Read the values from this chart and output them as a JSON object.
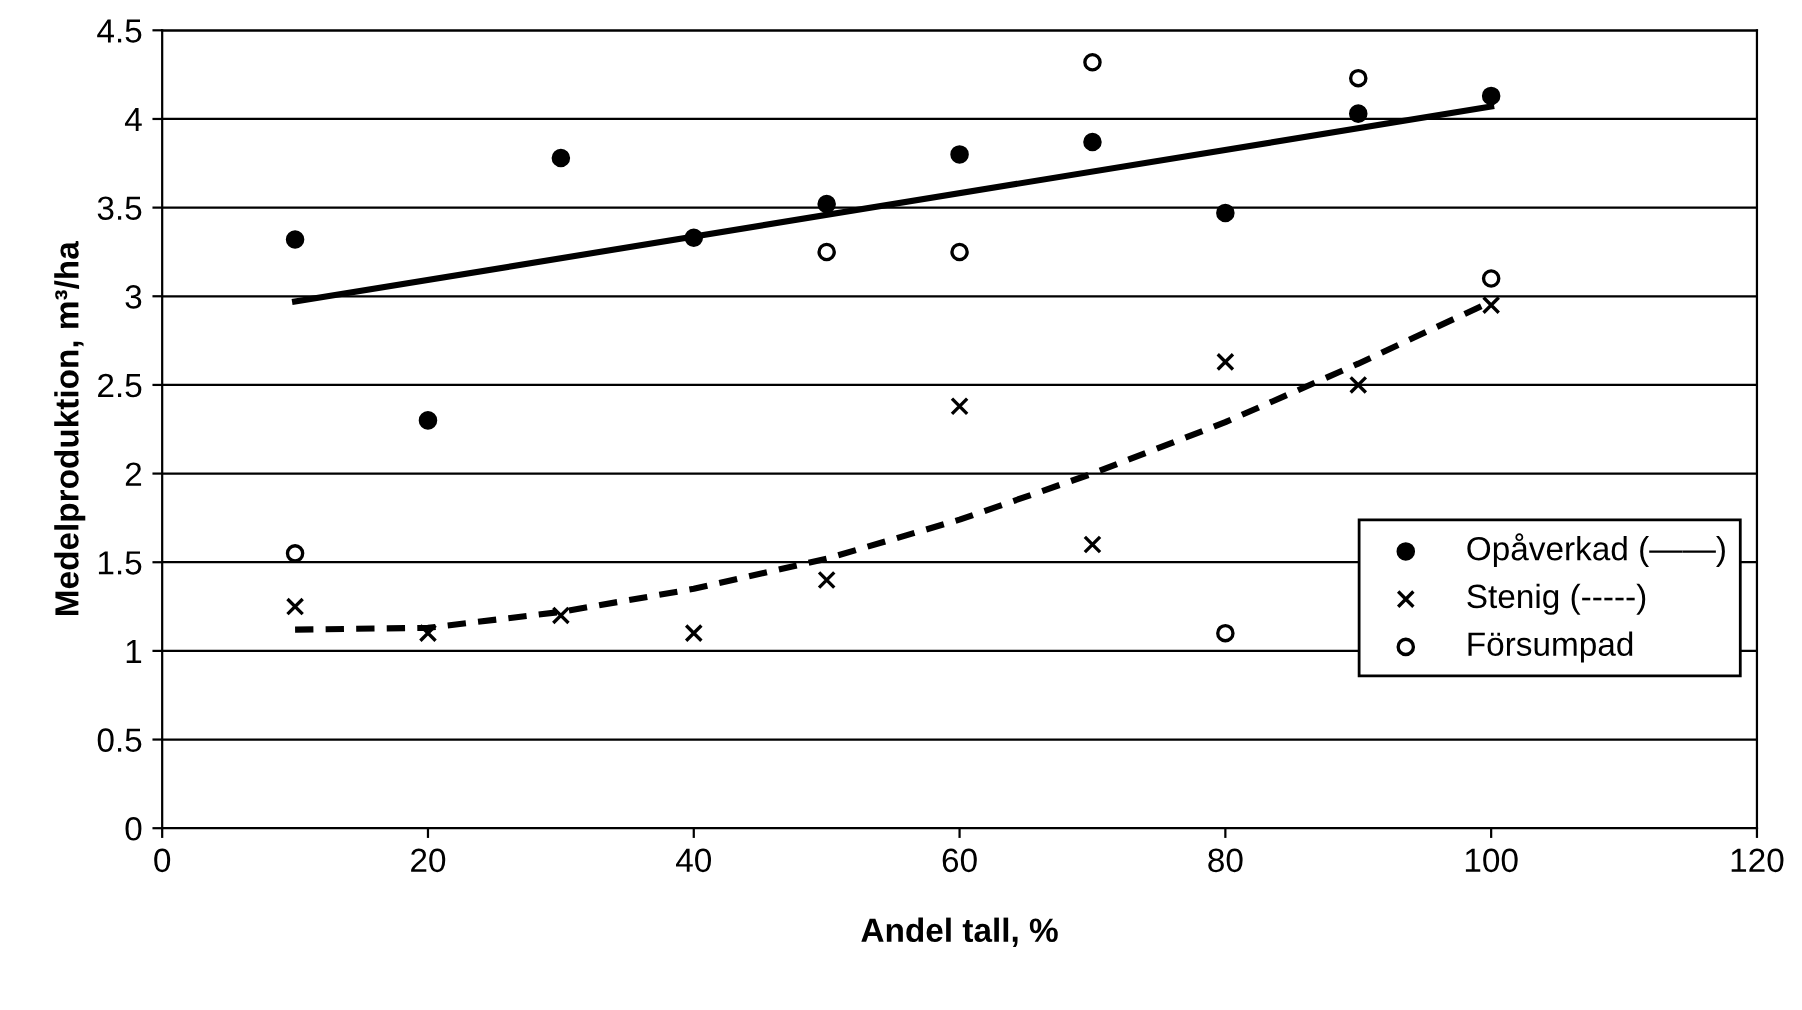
{
  "chart_data": {
    "type": "scatter",
    "xlabel": "Andel tall, %",
    "ylabel": "Medelproduktion, m³/ha",
    "xlim": [
      0,
      120
    ],
    "xticks": [
      0,
      20,
      40,
      60,
      80,
      100,
      120
    ],
    "ylim": [
      0,
      4.5
    ],
    "yticks": [
      0,
      0.5,
      1,
      1.5,
      2,
      2.5,
      3,
      3.5,
      4,
      4.5
    ],
    "grid": "y",
    "legend": "lower right",
    "series": [
      {
        "name": "Opåverkad (——)",
        "color": "#000000",
        "marker": "circle",
        "x": [
          10,
          20,
          30,
          40,
          50,
          60,
          70,
          80,
          90,
          100
        ],
        "values": [
          3.32,
          2.3,
          3.78,
          3.33,
          3.52,
          3.8,
          3.87,
          3.47,
          4.03,
          4.13
        ]
      },
      {
        "name": "Stenig (-----)",
        "color": "#000000",
        "marker": "cross",
        "x": [
          10,
          20,
          30,
          40,
          50,
          60,
          70,
          80,
          90,
          100
        ],
        "values": [
          1.25,
          1.1,
          1.2,
          1.1,
          1.4,
          2.38,
          1.6,
          2.63,
          2.5,
          2.95
        ]
      },
      {
        "name": "Försumpad",
        "color": "#000000",
        "marker": "circle",
        "x": [
          10,
          50,
          60,
          70,
          80,
          90,
          100
        ],
        "values": [
          1.55,
          3.25,
          3.25,
          4.32,
          1.1,
          4.23,
          3.1
        ]
      },
      {
        "type": "line",
        "color": "#000000",
        "line_style": "solid",
        "x": [
          10,
          100
        ],
        "values": [
          2.97,
          4.07
        ]
      },
      {
        "type": "line",
        "color": "#000000",
        "line_style": "dashed",
        "x": [
          10,
          20,
          30,
          40,
          50,
          60,
          70,
          80,
          90,
          100
        ],
        "values": [
          1.12,
          1.13,
          1.22,
          1.35,
          1.52,
          1.74,
          2.0,
          2.29,
          2.62,
          2.97
        ]
      }
    ]
  }
}
